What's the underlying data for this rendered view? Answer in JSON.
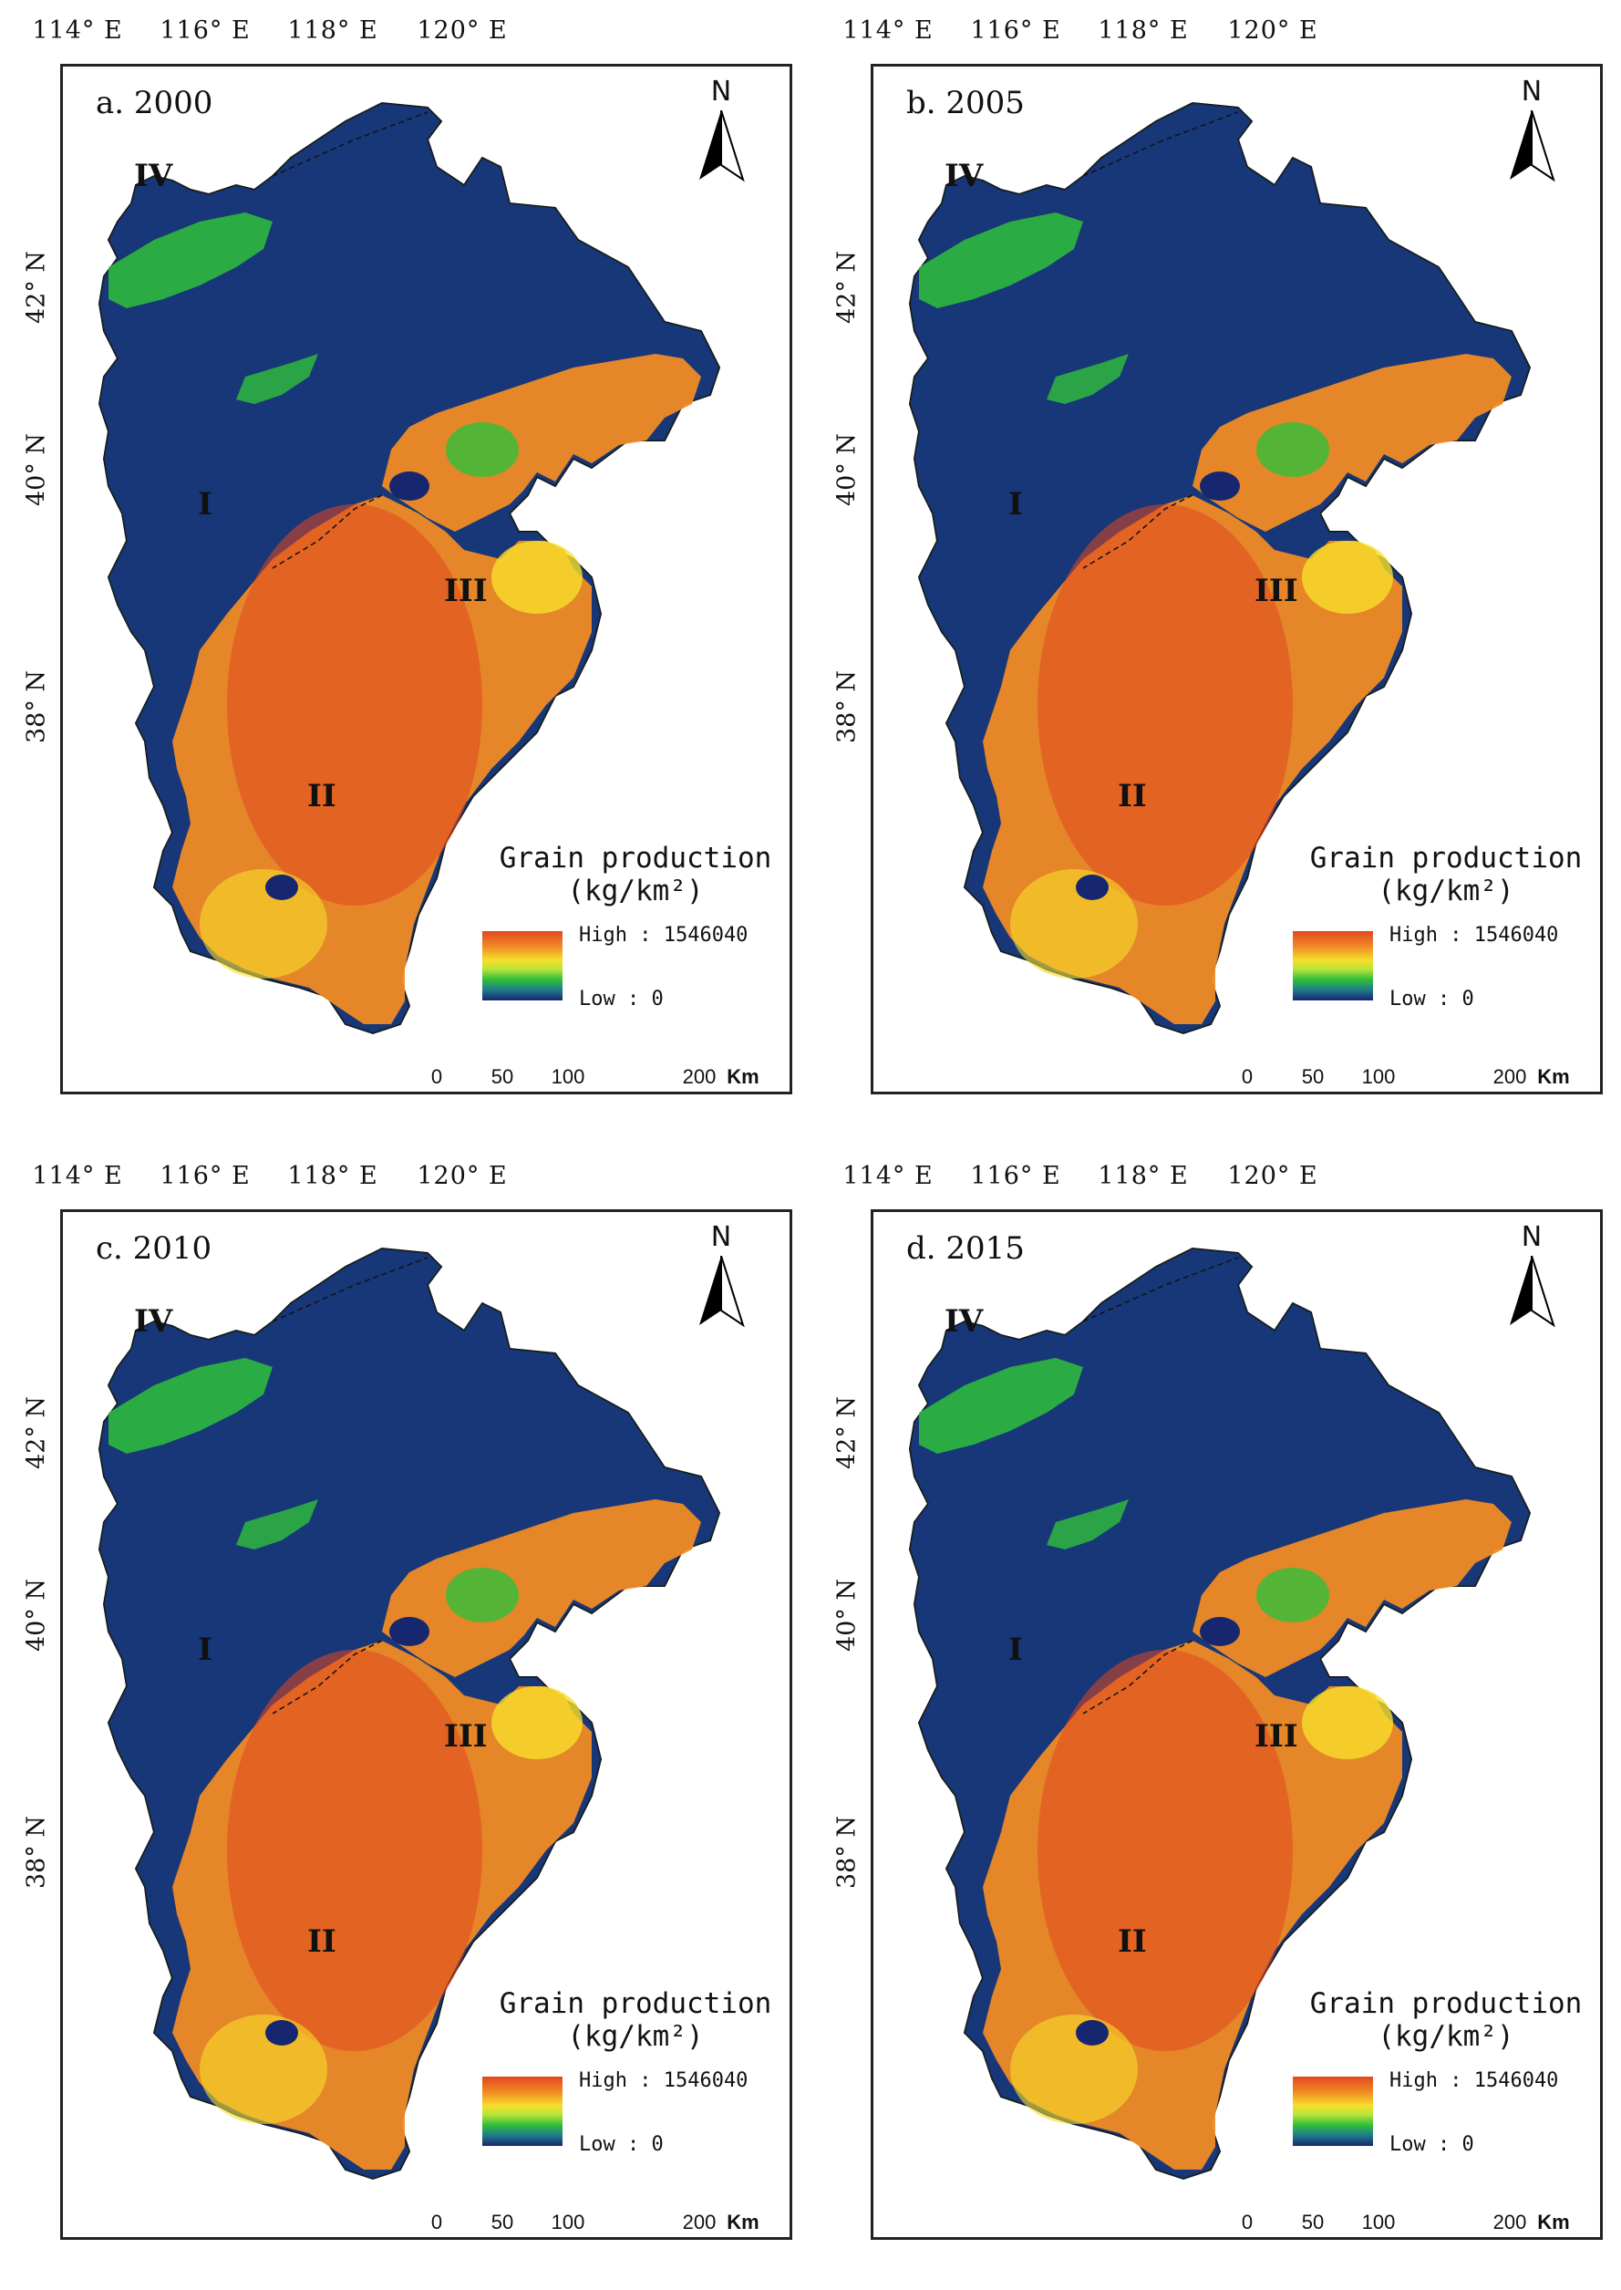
{
  "figure": {
    "panels": [
      {
        "title": "a. 2000"
      },
      {
        "title": "b. 2005"
      },
      {
        "title": "c. 2010"
      },
      {
        "title": "d. 2015"
      }
    ],
    "lon_labels": [
      "114° E",
      "116° E",
      "118° E",
      "120° E"
    ],
    "lat_labels": [
      "42° N",
      "40° N",
      "38° N"
    ],
    "north_label": "N",
    "region_labels": [
      "IV",
      "I",
      "III",
      "II"
    ],
    "legend": {
      "title": "Grain production",
      "unit": "(kg/km²)",
      "high": "High : 1546040",
      "low": "Low : 0",
      "colors": [
        "#e2471f",
        "#f08a25",
        "#f7de2a",
        "#2fbf3a",
        "#1f7a8c",
        "#16266f"
      ]
    },
    "scalebar": {
      "ticks": [
        "0",
        "50",
        "100",
        "200"
      ],
      "unit": "Km"
    }
  }
}
